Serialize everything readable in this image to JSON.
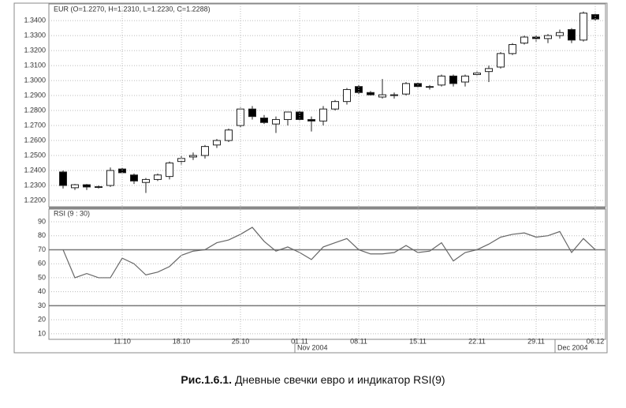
{
  "chart_data": [
    {
      "type": "candlestick",
      "title": "EUR (O=1.2270, H=1.2310, L=1.2230, C=1.2288)",
      "open": [
        1.239,
        1.2285,
        1.2305,
        1.229,
        1.23,
        1.241,
        1.237,
        1.232,
        1.234,
        1.236,
        1.246,
        1.249,
        1.25,
        1.257,
        1.26,
        1.27,
        1.281,
        1.275,
        1.271,
        1.274,
        1.279,
        1.274,
        1.273,
        1.281,
        1.286,
        1.296,
        1.292,
        1.289,
        1.29,
        1.291,
        1.298,
        1.2955,
        1.297,
        1.303,
        1.299,
        1.304,
        1.306,
        1.309,
        1.318,
        1.325,
        1.329,
        1.328,
        1.33,
        1.334,
        1.327,
        1.344
      ],
      "high": [
        1.24,
        1.231,
        1.231,
        1.23,
        1.242,
        1.242,
        1.238,
        1.235,
        1.238,
        1.246,
        1.25,
        1.252,
        1.257,
        1.261,
        1.268,
        1.282,
        1.283,
        1.277,
        1.276,
        1.279,
        1.28,
        1.276,
        1.283,
        1.287,
        1.295,
        1.297,
        1.293,
        1.301,
        1.292,
        1.299,
        1.299,
        1.297,
        1.304,
        1.304,
        1.304,
        1.306,
        1.31,
        1.319,
        1.325,
        1.33,
        1.33,
        1.331,
        1.334,
        1.335,
        1.346,
        1.345
      ],
      "low": [
        1.228,
        1.227,
        1.227,
        1.228,
        1.229,
        1.239,
        1.231,
        1.225,
        1.233,
        1.234,
        1.244,
        1.247,
        1.248,
        1.255,
        1.259,
        1.269,
        1.274,
        1.271,
        1.265,
        1.27,
        1.273,
        1.266,
        1.27,
        1.28,
        1.284,
        1.291,
        1.29,
        1.288,
        1.288,
        1.29,
        1.295,
        1.294,
        1.296,
        1.296,
        1.296,
        1.303,
        1.299,
        1.308,
        1.317,
        1.324,
        1.326,
        1.325,
        1.328,
        1.325,
        1.326,
        1.34
      ],
      "close": [
        1.23,
        1.2305,
        1.229,
        1.2292,
        1.24,
        1.2385,
        1.233,
        1.234,
        1.237,
        1.245,
        1.248,
        1.25,
        1.256,
        1.26,
        1.267,
        1.281,
        1.276,
        1.272,
        1.274,
        1.279,
        1.274,
        1.273,
        1.281,
        1.286,
        1.294,
        1.292,
        1.2905,
        1.2905,
        1.2905,
        1.298,
        1.296,
        1.296,
        1.303,
        1.298,
        1.303,
        1.305,
        1.308,
        1.318,
        1.324,
        1.329,
        1.328,
        1.33,
        1.332,
        1.327,
        1.345,
        1.341
      ],
      "up_color": "#ffffff",
      "down_color": "#000000",
      "ylim": [
        1.2158,
        1.3511
      ],
      "yticks": [
        {
          "value": 1.22,
          "label": "1.2200"
        },
        {
          "value": 1.23,
          "label": "1.2300"
        },
        {
          "value": 1.24,
          "label": "1.2400"
        },
        {
          "value": 1.25,
          "label": "1.2500"
        },
        {
          "value": 1.26,
          "label": "1.2600"
        },
        {
          "value": 1.27,
          "label": "1.2700"
        },
        {
          "value": 1.28,
          "label": "1.2800"
        },
        {
          "value": 1.29,
          "label": "1.2900"
        },
        {
          "value": 1.3,
          "label": "1.3000"
        },
        {
          "value": 1.31,
          "label": "1.3100"
        },
        {
          "value": 1.32,
          "label": "1.3200"
        },
        {
          "value": 1.33,
          "label": "1.3300"
        },
        {
          "value": 1.34,
          "label": "1.3400"
        }
      ],
      "grid": true
    },
    {
      "type": "line",
      "title": "RSI (9 : 30)",
      "categories": [
        null,
        null,
        null,
        null,
        null,
        "11.10",
        null,
        null,
        null,
        null,
        "18.10",
        null,
        null,
        null,
        null,
        "25.10",
        null,
        null,
        null,
        null,
        "01.11",
        null,
        null,
        null,
        null,
        "08.11",
        null,
        null,
        null,
        null,
        "15.11",
        null,
        null,
        null,
        null,
        "22.11",
        null,
        null,
        null,
        null,
        "29.11",
        null,
        null,
        null,
        null,
        "06.12"
      ],
      "months": [
        null,
        null,
        null,
        null,
        null,
        null,
        null,
        null,
        null,
        null,
        null,
        null,
        null,
        null,
        null,
        null,
        null,
        null,
        null,
        null,
        "Nov 2004",
        null,
        null,
        null,
        null,
        null,
        null,
        null,
        null,
        null,
        null,
        null,
        null,
        null,
        null,
        null,
        null,
        null,
        null,
        null,
        null,
        null,
        "Dec 2004",
        null,
        null,
        null
      ],
      "values": [
        70,
        50,
        53,
        50,
        50,
        64,
        60,
        52,
        54,
        58,
        66,
        69,
        70,
        75,
        77,
        81,
        86,
        76,
        69,
        72,
        68,
        63,
        72,
        75,
        78,
        70,
        67,
        67,
        68,
        73,
        68,
        69,
        75,
        62,
        68,
        70,
        74,
        79,
        81,
        82,
        79,
        80,
        83,
        68,
        78,
        70
      ],
      "color": "#666666",
      "levels": [
        70,
        30
      ],
      "ylim": [
        6,
        99
      ],
      "yticks": [
        10,
        20,
        30,
        40,
        50,
        60,
        70,
        80,
        90
      ],
      "grid": true
    }
  ],
  "caption": {
    "number": "Рис.1.6.1.",
    "text": "Дневные свечки евро и индикатор RSI(9)"
  }
}
